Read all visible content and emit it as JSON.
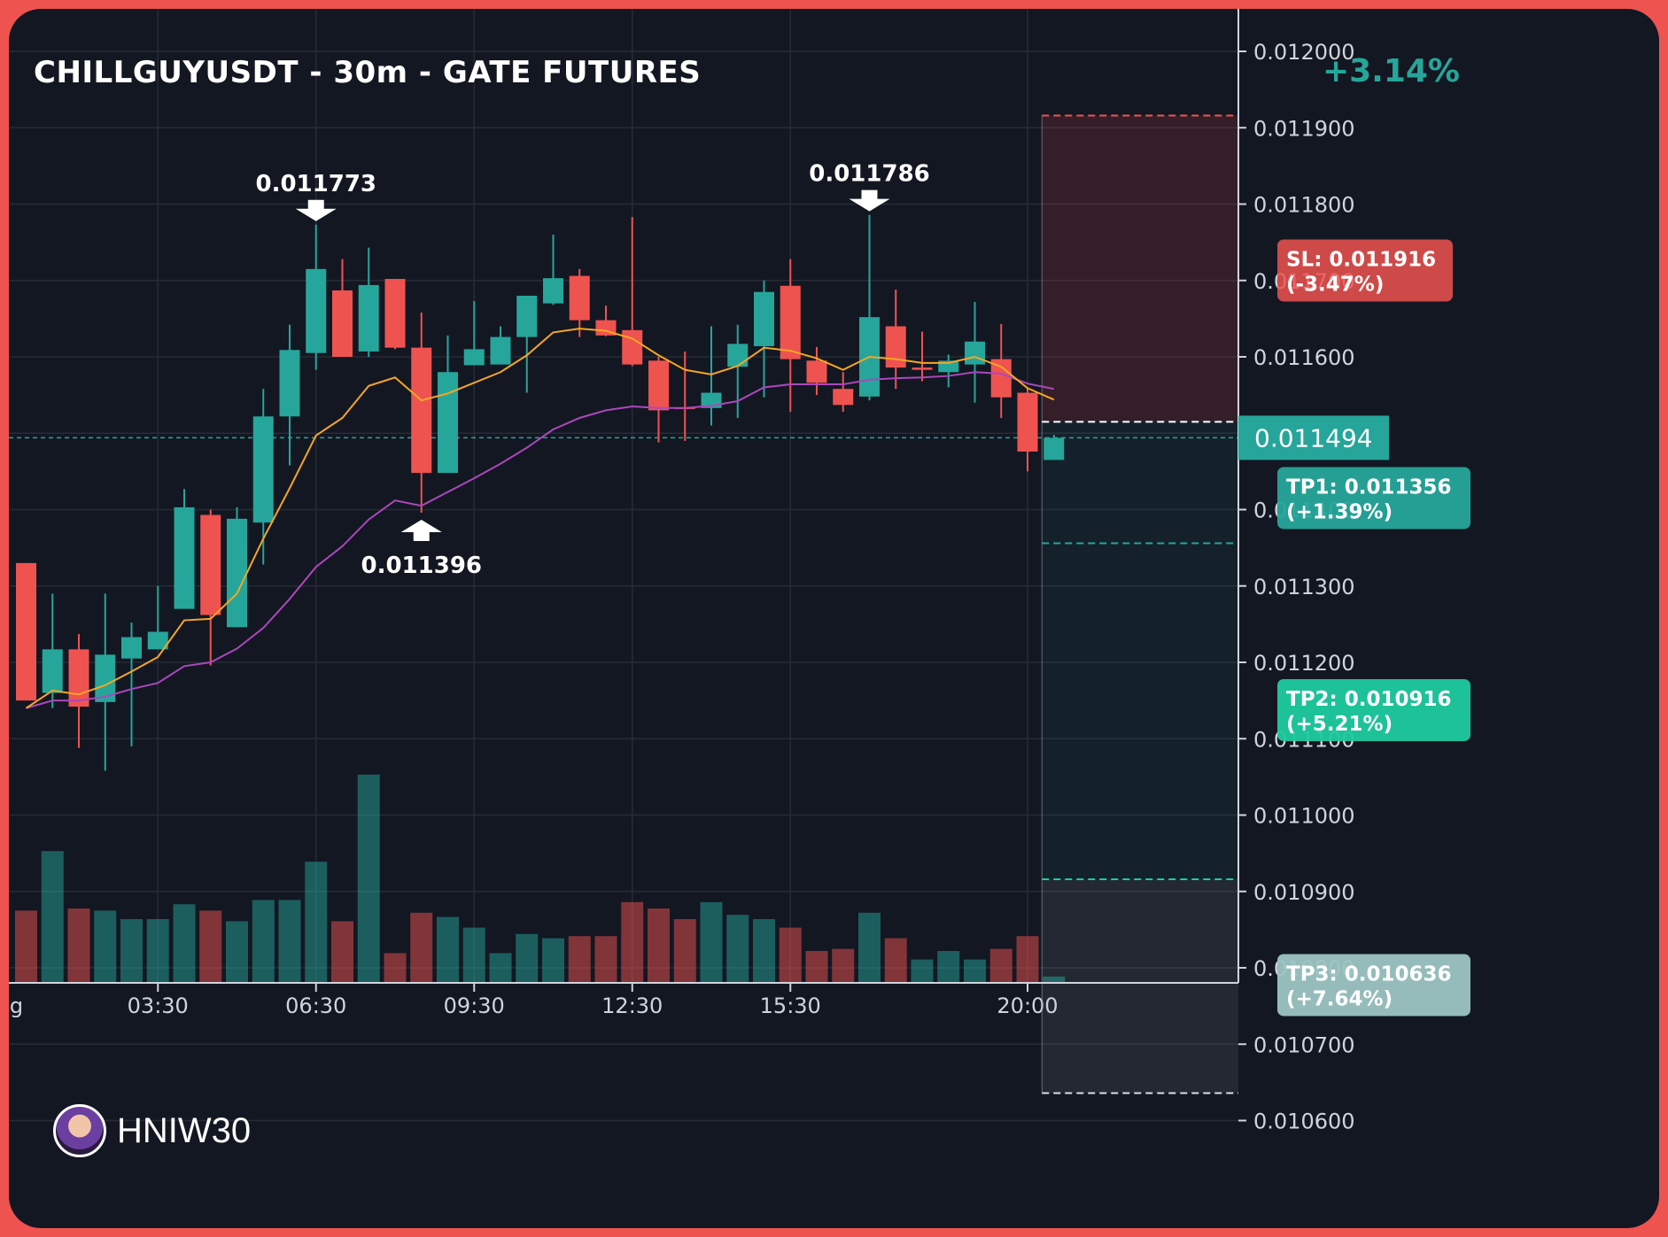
{
  "header": {
    "title": "CHILLGUYUSDT - 30m - GATE FUTURES",
    "change": "+3.14%"
  },
  "watermark": {
    "name": "HNIW30",
    "icon": "avatar-icon"
  },
  "colors": {
    "up": "#26a69a",
    "down": "#ef5350",
    "ema_fast": "#f5a623",
    "ema_slow": "#ab47bc",
    "background": "#131722",
    "frame": "#ef5350",
    "tp2": "#1ecb9f",
    "tp3": "#9cc5c3"
  },
  "chart_data": {
    "type": "candlestick",
    "title": "CHILLGUYUSDT - 30m - GATE FUTURES",
    "y_ticks": [
      "0.012000",
      "0.011900",
      "0.011800",
      "0.011700",
      "0.011600",
      "0.011500",
      "0.011400",
      "0.011300",
      "0.011200",
      "0.011100",
      "0.011000",
      "0.010900",
      "0.010800",
      "0.010700",
      "0.010600"
    ],
    "ylim": [
      0.01055,
      0.01206
    ],
    "x_ticks": [
      {
        "label": "Aug",
        "index": -0.9
      },
      {
        "label": "03:30",
        "index": 5
      },
      {
        "label": "06:30",
        "index": 11
      },
      {
        "label": "09:30",
        "index": 17
      },
      {
        "label": "12:30",
        "index": 23
      },
      {
        "label": "15:30",
        "index": 29
      },
      {
        "label": "20:00",
        "index": 38
      }
    ],
    "candles": [
      {
        "o": 0.01133,
        "h": 0.01133,
        "l": 0.01115,
        "c": 0.01115
      },
      {
        "o": 0.01116,
        "h": 0.01129,
        "l": 0.01114,
        "c": 0.011217
      },
      {
        "o": 0.011217,
        "h": 0.011237,
        "l": 0.011088,
        "c": 0.011142
      },
      {
        "o": 0.011148,
        "h": 0.01129,
        "l": 0.011058,
        "c": 0.01121
      },
      {
        "o": 0.011205,
        "h": 0.011252,
        "l": 0.01109,
        "c": 0.011233
      },
      {
        "o": 0.011217,
        "h": 0.0113,
        "l": 0.011217,
        "c": 0.01124
      },
      {
        "o": 0.01127,
        "h": 0.011427,
        "l": 0.01127,
        "c": 0.011403
      },
      {
        "o": 0.011393,
        "h": 0.0114,
        "l": 0.011196,
        "c": 0.011262
      },
      {
        "o": 0.011246,
        "h": 0.011403,
        "l": 0.011246,
        "c": 0.011388
      },
      {
        "o": 0.011383,
        "h": 0.011558,
        "l": 0.011328,
        "c": 0.011522
      },
      {
        "o": 0.011522,
        "h": 0.011642,
        "l": 0.011458,
        "c": 0.011609
      },
      {
        "o": 0.011605,
        "h": 0.011773,
        "l": 0.011583,
        "c": 0.011715
      },
      {
        "o": 0.011687,
        "h": 0.011728,
        "l": 0.0116,
        "c": 0.0116
      },
      {
        "o": 0.011607,
        "h": 0.011743,
        "l": 0.0116,
        "c": 0.011694
      },
      {
        "o": 0.011702,
        "h": 0.011702,
        "l": 0.01161,
        "c": 0.011612
      },
      {
        "o": 0.011612,
        "h": 0.011658,
        "l": 0.011396,
        "c": 0.011448
      },
      {
        "o": 0.011448,
        "h": 0.011628,
        "l": 0.011448,
        "c": 0.01158
      },
      {
        "o": 0.011589,
        "h": 0.011673,
        "l": 0.011589,
        "c": 0.01161
      },
      {
        "o": 0.01159,
        "h": 0.01164,
        "l": 0.01159,
        "c": 0.011626
      },
      {
        "o": 0.011626,
        "h": 0.011673,
        "l": 0.011553,
        "c": 0.01168
      },
      {
        "o": 0.01167,
        "h": 0.01176,
        "l": 0.011668,
        "c": 0.011703
      },
      {
        "o": 0.011706,
        "h": 0.011715,
        "l": 0.011626,
        "c": 0.011648
      },
      {
        "o": 0.011648,
        "h": 0.011667,
        "l": 0.011627,
        "c": 0.011628
      },
      {
        "o": 0.011635,
        "h": 0.011783,
        "l": 0.011588,
        "c": 0.01159
      },
      {
        "o": 0.011595,
        "h": 0.0116,
        "l": 0.011488,
        "c": 0.01153
      },
      {
        "o": 0.011534,
        "h": 0.011607,
        "l": 0.01149,
        "c": 0.011532
      },
      {
        "o": 0.011533,
        "h": 0.01164,
        "l": 0.01151,
        "c": 0.011553
      },
      {
        "o": 0.011587,
        "h": 0.011642,
        "l": 0.01152,
        "c": 0.011617
      },
      {
        "o": 0.011614,
        "h": 0.0117,
        "l": 0.011547,
        "c": 0.011685
      },
      {
        "o": 0.011693,
        "h": 0.011728,
        "l": 0.011528,
        "c": 0.011597
      },
      {
        "o": 0.011595,
        "h": 0.011613,
        "l": 0.01155,
        "c": 0.011566
      },
      {
        "o": 0.011558,
        "h": 0.01158,
        "l": 0.011528,
        "c": 0.011537
      },
      {
        "o": 0.011548,
        "h": 0.011786,
        "l": 0.011543,
        "c": 0.011652
      },
      {
        "o": 0.01164,
        "h": 0.011688,
        "l": 0.011558,
        "c": 0.011586
      },
      {
        "o": 0.011586,
        "h": 0.011633,
        "l": 0.011568,
        "c": 0.011583
      },
      {
        "o": 0.01158,
        "h": 0.011603,
        "l": 0.01156,
        "c": 0.011595
      },
      {
        "o": 0.01159,
        "h": 0.011672,
        "l": 0.01154,
        "c": 0.01162
      },
      {
        "o": 0.011597,
        "h": 0.011643,
        "l": 0.01152,
        "c": 0.011547
      },
      {
        "o": 0.011553,
        "h": 0.01156,
        "l": 0.01145,
        "c": 0.011476
      },
      {
        "o": 0.011465,
        "h": 0.011498,
        "l": 0.011465,
        "c": 0.011494
      }
    ],
    "ema_fast": [
      0.01114,
      0.011163,
      0.011158,
      0.01117,
      0.011188,
      0.011207,
      0.011255,
      0.011257,
      0.01129,
      0.011362,
      0.011428,
      0.011497,
      0.01152,
      0.011562,
      0.011573,
      0.011543,
      0.011552,
      0.011566,
      0.01158,
      0.011602,
      0.011632,
      0.011637,
      0.011634,
      0.011624,
      0.011602,
      0.011583,
      0.011577,
      0.011588,
      0.011612,
      0.011608,
      0.011598,
      0.011583,
      0.0116,
      0.011597,
      0.011592,
      0.011592,
      0.0116,
      0.011587,
      0.011559,
      0.011544
    ],
    "ema_slow": [
      0.01114,
      0.01115,
      0.01115,
      0.011155,
      0.011165,
      0.011173,
      0.011195,
      0.0112,
      0.011218,
      0.011245,
      0.011283,
      0.011325,
      0.011352,
      0.011387,
      0.011412,
      0.011405,
      0.011423,
      0.011441,
      0.01146,
      0.011481,
      0.011505,
      0.01152,
      0.01153,
      0.011535,
      0.011533,
      0.011533,
      0.011536,
      0.011542,
      0.01156,
      0.011564,
      0.011564,
      0.011564,
      0.01157,
      0.011572,
      0.011573,
      0.011575,
      0.01158,
      0.011578,
      0.011565,
      0.011558
    ],
    "volumes": [
      0.34,
      0.62,
      0.35,
      0.34,
      0.3,
      0.3,
      0.37,
      0.34,
      0.29,
      0.39,
      0.39,
      0.57,
      0.29,
      0.98,
      0.14,
      0.33,
      0.31,
      0.26,
      0.14,
      0.23,
      0.21,
      0.22,
      0.22,
      0.38,
      0.35,
      0.3,
      0.38,
      0.32,
      0.3,
      0.26,
      0.15,
      0.16,
      0.33,
      0.21,
      0.11,
      0.15,
      0.11,
      0.16,
      0.22,
      0.03
    ],
    "volume_colors": [
      "down",
      "up",
      "down",
      "up",
      "up",
      "up",
      "up",
      "down",
      "up",
      "up",
      "up",
      "up",
      "down",
      "up",
      "down",
      "down",
      "up",
      "up",
      "up",
      "up",
      "up",
      "down",
      "down",
      "down",
      "down",
      "down",
      "up",
      "up",
      "up",
      "down",
      "down",
      "down",
      "up",
      "down",
      "up",
      "up",
      "up",
      "down",
      "down",
      "up"
    ],
    "annotations": [
      {
        "label": "0.011773",
        "index": 11,
        "value": 0.011773,
        "arrow": "down"
      },
      {
        "label": "0.011786",
        "index": 32,
        "value": 0.011786,
        "arrow": "down"
      },
      {
        "label": "0.011396",
        "index": 15,
        "value": 0.011396,
        "arrow": "up"
      }
    ],
    "current_price": {
      "label": "0.011494",
      "value": 0.011494
    },
    "levels": [
      {
        "label": "SL: 0.011916",
        "pct": "(-3.47%)",
        "value": 0.011916,
        "color": "#ef5350",
        "line": "#ef5350"
      },
      {
        "label": "TP1: 0.011356",
        "pct": "(+1.39%)",
        "value": 0.011356,
        "color": "#26a69a",
        "line": "#26a69a"
      },
      {
        "label": "TP2: 0.010916",
        "pct": "(+5.21%)",
        "value": 0.010916,
        "color": "#1ecb9f",
        "line": "#1ecb9f"
      },
      {
        "label": "TP3: 0.010636",
        "pct": "(+7.64%)",
        "value": 0.010636,
        "color": "#9cc5c3",
        "line": "#d9dde4"
      }
    ],
    "entry": 0.011515
  }
}
